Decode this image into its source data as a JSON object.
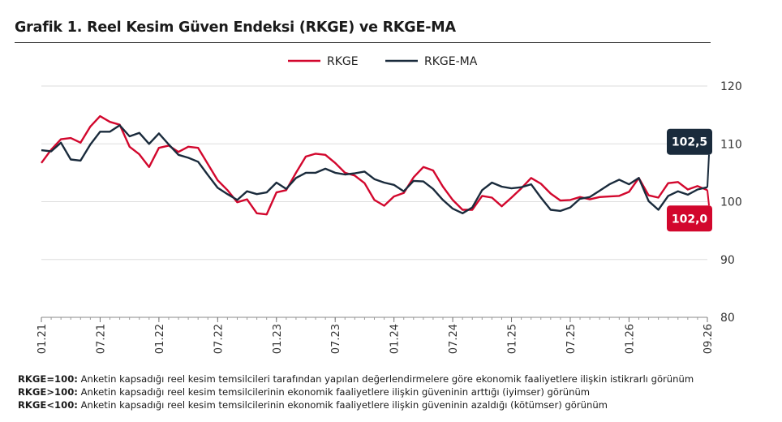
{
  "title": "Grafik 1. Reel Kesim Güven Endeksi (RKGE) ve RKGE-MA",
  "notes": [
    {
      "key": "RKGE=100:",
      "text": " Anketin kapsadığı reel kesim temsilcileri tarafından yapılan değerlendirmelere göre ekonomik faaliyetlere ilişkin istikrarlı görünüm"
    },
    {
      "key": "RKGE>100:",
      "text": " Anketin kapsadığı reel kesim temsilcilerinin ekonomik faaliyetlere ilişkin güveninin arttığı (iyimser) görünüm"
    },
    {
      "key": "RKGE<100:",
      "text": " Anketin kapsadığı reel kesim temsilcilerinin ekonomik faaliyetlere ilişkin güveninin azaldığı (kötümser) görünüm"
    }
  ],
  "chart_data": {
    "type": "line",
    "title": "Grafik 1. Reel Kesim Güven Endeksi (RKGE) ve RKGE-MA",
    "ylim": [
      80,
      120
    ],
    "y_ticks": [
      "80",
      "90",
      "100",
      "110",
      "120"
    ],
    "y_axis_side": "right",
    "grid": true,
    "legend_position": "top-center",
    "x_tick_labels": [
      "01.21",
      "07.21",
      "01.22",
      "07.22",
      "01.23",
      "07.23",
      "01.24",
      "07.24",
      "01.25",
      "07.25",
      "01.26",
      "09.26"
    ],
    "x_tick_index": [
      0,
      6,
      12,
      18,
      24,
      30,
      36,
      42,
      48,
      54,
      60,
      68
    ],
    "n_points": 69,
    "series": [
      {
        "name": "RKGE",
        "color": "#d2072d",
        "values": [
          106.7,
          109.0,
          110.8,
          111.0,
          110.2,
          113.0,
          114.8,
          113.8,
          113.3,
          109.5,
          108.2,
          106.0,
          109.3,
          109.7,
          108.6,
          109.5,
          109.3,
          106.5,
          103.7,
          102.0,
          99.9,
          100.4,
          98.0,
          97.8,
          101.6,
          102.0,
          105.0,
          107.8,
          108.3,
          108.1,
          106.7,
          105.0,
          104.5,
          103.2,
          100.3,
          99.3,
          100.9,
          101.5,
          104.2,
          106.0,
          105.4,
          102.6,
          100.3,
          98.6,
          98.6,
          101.0,
          100.7,
          99.2,
          100.7,
          102.3,
          104.1,
          103.1,
          101.4,
          100.2,
          100.3,
          100.8,
          100.4,
          100.8,
          100.9,
          101.0,
          101.7,
          104.1,
          101.1,
          100.7,
          103.2,
          103.4,
          102.1,
          102.7,
          102.0
        ]
      },
      {
        "name": "RKGE-MA",
        "color": "#1a2b3c",
        "values": [
          108.9,
          108.7,
          110.2,
          107.3,
          107.1,
          109.9,
          112.1,
          112.1,
          113.2,
          111.3,
          111.9,
          110.0,
          111.8,
          109.9,
          108.1,
          107.6,
          106.9,
          104.6,
          102.4,
          101.3,
          100.3,
          101.8,
          101.3,
          101.6,
          103.3,
          102.2,
          104.1,
          105.0,
          105.0,
          105.7,
          105.0,
          104.7,
          104.9,
          105.2,
          103.9,
          103.3,
          102.9,
          101.8,
          103.6,
          103.5,
          102.2,
          100.3,
          98.8,
          98.0,
          99.0,
          102.0,
          103.3,
          102.6,
          102.3,
          102.5,
          103.0,
          100.7,
          98.6,
          98.4,
          99.0,
          100.5,
          100.8,
          101.9,
          103.0,
          103.8,
          103.0,
          104.1,
          100.1,
          98.6,
          101.0,
          101.8,
          101.2,
          102.1,
          102.5
        ]
      }
    ],
    "callouts": [
      {
        "series": "RKGE-MA",
        "label": "102,5",
        "color": "#1a2b3c",
        "placement": "above"
      },
      {
        "series": "RKGE",
        "label": "102,0",
        "color": "#d2072d",
        "placement": "below"
      }
    ]
  }
}
